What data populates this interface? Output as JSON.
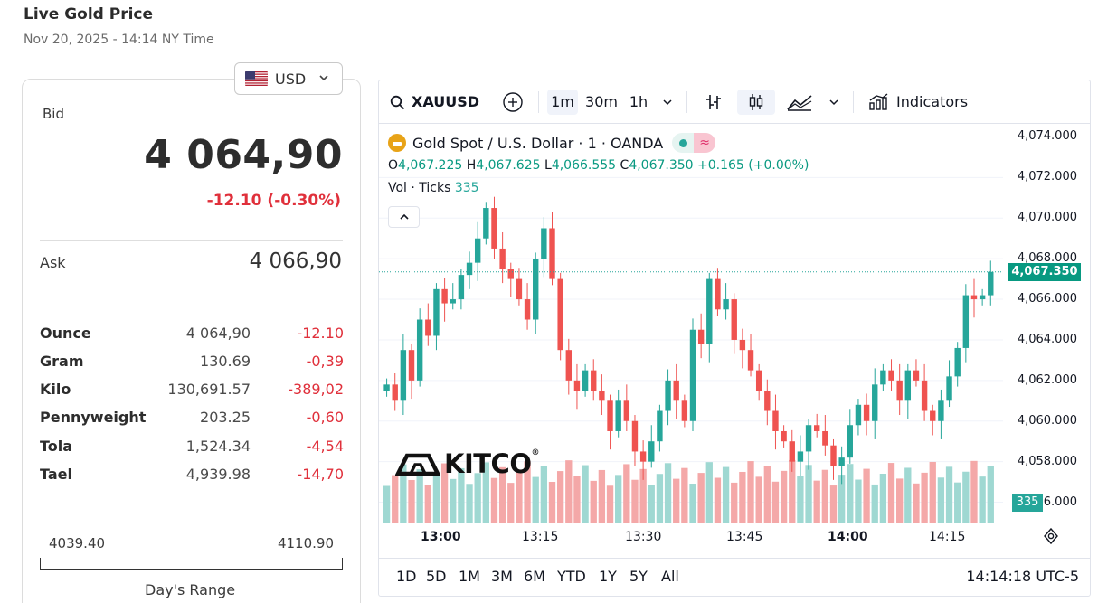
{
  "page": {
    "title": "Live Gold Price",
    "subtitle": "Nov 20, 2025 - 14:14 NY Time"
  },
  "currency": {
    "selected": "USD",
    "flag_icon": "us-flag-icon"
  },
  "quote": {
    "bid_label": "Bid",
    "bid_value": "4 064,90",
    "bid_change": "-12.10 (-0.30%)",
    "ask_label": "Ask",
    "ask_value": "4 066,90"
  },
  "units": [
    {
      "name": "Ounce",
      "value": "4 064,90",
      "change": "-12.10"
    },
    {
      "name": "Gram",
      "value": "130.69",
      "change": "-0,39"
    },
    {
      "name": "Kilo",
      "value": "130,691.57",
      "change": "-389,02"
    },
    {
      "name": "Pennyweight",
      "value": "203.25",
      "change": "-0,60"
    },
    {
      "name": "Tola",
      "value": "1,524.34",
      "change": "-4,54"
    },
    {
      "name": "Tael",
      "value": "4,939.98",
      "change": "-14,70"
    }
  ],
  "day_range": {
    "low": "4039.40",
    "high": "4110.90",
    "caption": "Day's Range"
  },
  "toolbar": {
    "symbol": "XAUUSD",
    "intervals": [
      "1m",
      "30m",
      "1h"
    ],
    "active_interval": "1m",
    "indicators_label": "Indicators"
  },
  "legend": {
    "title": "Gold Spot / U.S. Dollar · 1 · OANDA",
    "o_label": "O",
    "o_value": "4,067.225",
    "h_label": "H",
    "h_value": "4,067.625",
    "l_label": "L",
    "l_value": "4,066.555",
    "c_label": "C",
    "c_value": "4,067.350",
    "change": "+0.165 (+0.00%)",
    "vol_label": "Vol · Ticks",
    "vol_value": "335"
  },
  "logo": {
    "text": "KITCO",
    "reg": "®"
  },
  "colors": {
    "up": "#26a69a",
    "down": "#ef5350",
    "up_volume": "#9fd8d2",
    "down_volume": "#f4a8a8",
    "negative_text": "#e0303b"
  },
  "chart_data": {
    "type": "candlestick",
    "price_axis_ticks": [
      "4,074.000",
      "4,072.000",
      "4,070.000",
      "4,068.000",
      "4,066.000",
      "4,064.000",
      "4,062.000",
      "4,060.000",
      "4,058.000",
      "4,056.000"
    ],
    "time_axis_ticks": [
      "13:00",
      "13:15",
      "13:30",
      "13:45",
      "14:00",
      "14:15"
    ],
    "last_price": "4,067.350",
    "last_volume": "335",
    "ylim": [
      4055,
      4074.6
    ],
    "close_series_approx": [
      4061.8,
      4061,
      4063.5,
      4062,
      4065,
      4064.2,
      4066.5,
      4065.8,
      4066,
      4067.2,
      4067.8,
      4069,
      4070.5,
      4068.5,
      4067.5,
      4067,
      4066,
      4065,
      4068,
      4069.5,
      4067,
      4063.5,
      4062,
      4061.5,
      4062.5,
      4061.5,
      4061,
      4059.5,
      4061,
      4060,
      4058.5,
      4058,
      4059,
      4060.5,
      4062,
      4061,
      4060,
      4064.5,
      4063.8,
      4067,
      4065.5,
      4066,
      4064,
      4063.5,
      4062.5,
      4061.5,
      4060.5,
      4059.5,
      4059,
      4058,
      4058.5,
      4059.8,
      4059.5,
      4058.8,
      4057.8,
      4058.2,
      4059.8,
      4060.8,
      4060,
      4061.8,
      4062.5,
      4062,
      4061,
      4062.5,
      4062,
      4060.5,
      4060,
      4061,
      4062.2,
      4063.6,
      4066.2,
      4066,
      4066.2,
      4067.35
    ],
    "volume_range": [
      0,
      400
    ]
  }
}
